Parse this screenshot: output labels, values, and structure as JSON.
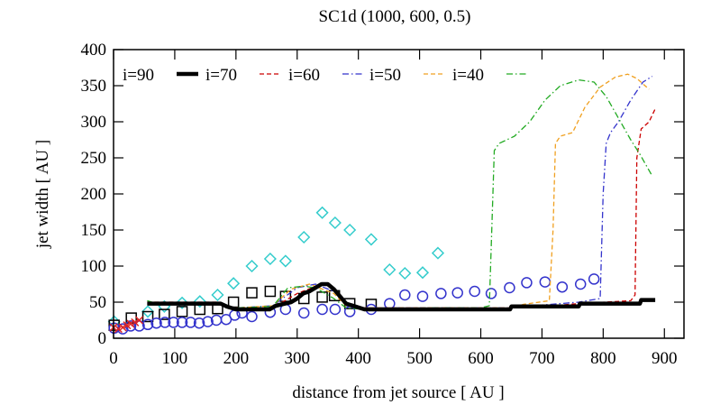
{
  "chart_data": {
    "type": "line",
    "title": "SC1d (1000, 600, 0.5)",
    "xlabel": "distance from jet source [ AU ]",
    "ylabel": "jet width [ AU ]",
    "xlim": [
      0,
      932
    ],
    "ylim": [
      0,
      400
    ],
    "xticks": [
      0,
      100,
      200,
      300,
      400,
      500,
      600,
      700,
      800,
      900
    ],
    "yticks": [
      0,
      50,
      100,
      150,
      200,
      250,
      300,
      350,
      400
    ],
    "grid": false,
    "legend_position": "top-left",
    "series": [
      {
        "name": "i=90",
        "color": "#000000",
        "style": "solid-thick",
        "points": [
          [
            55,
            48
          ],
          [
            175,
            48
          ],
          [
            185,
            44
          ],
          [
            200,
            40
          ],
          [
            255,
            40
          ],
          [
            265,
            45
          ],
          [
            290,
            50
          ],
          [
            300,
            55
          ],
          [
            310,
            62
          ],
          [
            320,
            65
          ],
          [
            330,
            70
          ],
          [
            340,
            75
          ],
          [
            350,
            75
          ],
          [
            360,
            68
          ],
          [
            370,
            58
          ],
          [
            380,
            48
          ],
          [
            395,
            44
          ],
          [
            410,
            40
          ],
          [
            648,
            40
          ],
          [
            650,
            44
          ],
          [
            760,
            44
          ],
          [
            762,
            48
          ],
          [
            860,
            48
          ],
          [
            862,
            53
          ],
          [
            885,
            53
          ]
        ]
      },
      {
        "name": "i=70",
        "color": "#cc0000",
        "style": "dashed",
        "points": [
          [
            55,
            50
          ],
          [
            170,
            50
          ],
          [
            185,
            45
          ],
          [
            200,
            42
          ],
          [
            260,
            42
          ],
          [
            300,
            62
          ],
          [
            340,
            75
          ],
          [
            360,
            70
          ],
          [
            380,
            48
          ],
          [
            410,
            42
          ],
          [
            650,
            42
          ],
          [
            700,
            44
          ],
          [
            760,
            48
          ],
          [
            845,
            52
          ],
          [
            852,
            60
          ],
          [
            855,
            250
          ],
          [
            862,
            290
          ],
          [
            875,
            300
          ],
          [
            885,
            318
          ]
        ]
      },
      {
        "name": "i=60",
        "color": "#3333cc",
        "style": "dash-dot",
        "points": [
          [
            55,
            48
          ],
          [
            170,
            48
          ],
          [
            190,
            44
          ],
          [
            200,
            42
          ],
          [
            260,
            45
          ],
          [
            300,
            70
          ],
          [
            330,
            75
          ],
          [
            360,
            65
          ],
          [
            380,
            45
          ],
          [
            410,
            42
          ],
          [
            650,
            42
          ],
          [
            700,
            46
          ],
          [
            760,
            50
          ],
          [
            795,
            55
          ],
          [
            800,
            200
          ],
          [
            805,
            270
          ],
          [
            812,
            285
          ],
          [
            825,
            300
          ],
          [
            845,
            330
          ],
          [
            865,
            355
          ],
          [
            880,
            363
          ]
        ]
      },
      {
        "name": "i=50",
        "color": "#f0a020",
        "style": "dashed",
        "points": [
          [
            55,
            47
          ],
          [
            170,
            47
          ],
          [
            190,
            43
          ],
          [
            200,
            42
          ],
          [
            260,
            45
          ],
          [
            290,
            68
          ],
          [
            320,
            75
          ],
          [
            360,
            62
          ],
          [
            380,
            45
          ],
          [
            410,
            42
          ],
          [
            650,
            42
          ],
          [
            670,
            47
          ],
          [
            712,
            52
          ],
          [
            718,
            150
          ],
          [
            722,
            270
          ],
          [
            730,
            280
          ],
          [
            750,
            285
          ],
          [
            770,
            320
          ],
          [
            795,
            348
          ],
          [
            820,
            362
          ],
          [
            840,
            366
          ],
          [
            855,
            360
          ],
          [
            875,
            345
          ]
        ]
      },
      {
        "name": "i=40",
        "color": "#22aa22",
        "style": "dash-dot",
        "points": [
          [
            55,
            52
          ],
          [
            70,
            48
          ],
          [
            170,
            48
          ],
          [
            190,
            44
          ],
          [
            200,
            42
          ],
          [
            260,
            44
          ],
          [
            285,
            70
          ],
          [
            310,
            72
          ],
          [
            330,
            70
          ],
          [
            360,
            55
          ],
          [
            380,
            42
          ],
          [
            410,
            40
          ],
          [
            520,
            42
          ],
          [
            600,
            42
          ],
          [
            614,
            45
          ],
          [
            618,
            150
          ],
          [
            622,
            260
          ],
          [
            630,
            270
          ],
          [
            655,
            280
          ],
          [
            680,
            300
          ],
          [
            705,
            330
          ],
          [
            730,
            350
          ],
          [
            760,
            358
          ],
          [
            785,
            355
          ],
          [
            805,
            335
          ],
          [
            825,
            305
          ],
          [
            845,
            275
          ],
          [
            860,
            255
          ],
          [
            880,
            225
          ]
        ]
      }
    ],
    "scatter": [
      {
        "marker": "diamond",
        "color": "#33cccc",
        "points": [
          [
            1,
            23
          ],
          [
            56,
            37
          ],
          [
            83,
            44
          ],
          [
            112,
            49
          ],
          [
            141,
            51
          ],
          [
            170,
            60
          ],
          [
            196,
            76
          ],
          [
            226,
            100
          ],
          [
            256,
            110
          ],
          [
            281,
            107
          ],
          [
            311,
            140
          ],
          [
            341,
            174
          ],
          [
            362,
            160
          ],
          [
            386,
            150
          ],
          [
            421,
            137
          ],
          [
            451,
            95
          ],
          [
            476,
            90
          ],
          [
            505,
            91
          ],
          [
            530,
            118
          ]
        ]
      },
      {
        "marker": "square",
        "color": "#000000",
        "points": [
          [
            1,
            18
          ],
          [
            29,
            28
          ],
          [
            56,
            30
          ],
          [
            83,
            33
          ],
          [
            112,
            37
          ],
          [
            141,
            40
          ],
          [
            170,
            41
          ],
          [
            196,
            50
          ],
          [
            226,
            63
          ],
          [
            256,
            65
          ],
          [
            281,
            58
          ],
          [
            311,
            55
          ],
          [
            341,
            57
          ],
          [
            361,
            59
          ],
          [
            386,
            48
          ],
          [
            421,
            47
          ]
        ]
      },
      {
        "marker": "circle",
        "color": "#3333cc",
        "points": [
          [
            1,
            14
          ],
          [
            15,
            13
          ],
          [
            28,
            17
          ],
          [
            42,
            17
          ],
          [
            56,
            19
          ],
          [
            70,
            21
          ],
          [
            84,
            22
          ],
          [
            98,
            22
          ],
          [
            112,
            22
          ],
          [
            126,
            22
          ],
          [
            140,
            21
          ],
          [
            154,
            23
          ],
          [
            168,
            25
          ],
          [
            184,
            26
          ],
          [
            198,
            32
          ],
          [
            210,
            35
          ],
          [
            226,
            30
          ],
          [
            256,
            36
          ],
          [
            281,
            40
          ],
          [
            311,
            35
          ],
          [
            341,
            40
          ],
          [
            362,
            40
          ],
          [
            386,
            37
          ],
          [
            421,
            40
          ],
          [
            451,
            48
          ],
          [
            476,
            60
          ],
          [
            505,
            58
          ],
          [
            535,
            62
          ],
          [
            562,
            63
          ],
          [
            590,
            65
          ],
          [
            617,
            62
          ],
          [
            647,
            70
          ],
          [
            675,
            77
          ],
          [
            705,
            78
          ],
          [
            733,
            71
          ],
          [
            763,
            75
          ],
          [
            785,
            82
          ]
        ]
      },
      {
        "marker": "cross",
        "color": "#dd2222",
        "points": [
          [
            0,
            15
          ],
          [
            8,
            13
          ],
          [
            15,
            15
          ],
          [
            22,
            18
          ],
          [
            28,
            20
          ],
          [
            35,
            22
          ],
          [
            42,
            25
          ]
        ]
      }
    ]
  }
}
